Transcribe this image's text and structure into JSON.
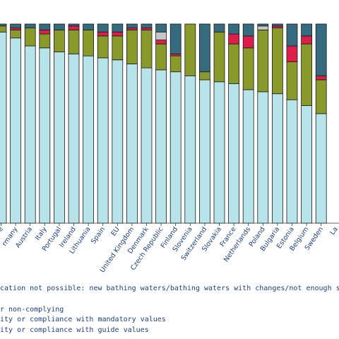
{
  "chart_data": {
    "type": "bar",
    "stacked": true,
    "orientation": "vertical",
    "grid": false,
    "ylim": [
      0,
      100
    ],
    "categories": [
      "e",
      "rmany",
      "Austria",
      "Italy",
      "Portugal",
      "Ireland",
      "Lithuania",
      "Spain",
      "EU",
      "United Kingdom",
      "Denmark",
      "Czech Republic",
      "Finland",
      "Slovenia",
      "Switzerland",
      "Slovakia",
      "France",
      "Netherlands",
      "Poland",
      "Bulgaria",
      "Estonia",
      "Belgium",
      "Sweden",
      "La"
    ],
    "series": [
      {
        "key": "guide",
        "color": "#b7e3ea",
        "values": [
          96,
          93,
          89,
          88,
          86,
          85,
          84,
          83,
          82,
          80,
          78,
          77,
          76,
          74,
          72,
          71,
          70,
          67,
          66,
          65,
          62,
          59,
          55,
          0
        ]
      },
      {
        "key": "mandatory",
        "color": "#8a9a2a",
        "values": [
          3,
          4,
          9,
          7,
          11,
          12,
          13,
          11,
          12,
          17,
          19,
          13,
          8,
          26,
          4,
          25,
          20,
          21,
          31,
          33,
          19,
          31,
          17,
          0
        ]
      },
      {
        "key": "noncomplying",
        "color": "#dd1d4a",
        "values": [
          0,
          1,
          0,
          2,
          0,
          2,
          0,
          2,
          2,
          1,
          1,
          2,
          1,
          0,
          0,
          0,
          5,
          6,
          0,
          1,
          8,
          4,
          2,
          0
        ]
      },
      {
        "key": "notpossible",
        "color": "#c6c6c6",
        "values": [
          0,
          0,
          0,
          0,
          0,
          0,
          0,
          0,
          0,
          0,
          0,
          4,
          0,
          0,
          0,
          0,
          0,
          0,
          2,
          0,
          0,
          0,
          0,
          0
        ]
      },
      {
        "key": "closed",
        "color": "#356b7f",
        "values": [
          1,
          2,
          2,
          3,
          3,
          1,
          3,
          4,
          4,
          2,
          2,
          4,
          15,
          0,
          24,
          4,
          5,
          6,
          1,
          1,
          11,
          6,
          26,
          0
        ]
      }
    ]
  },
  "legend": {
    "line1": "cation not possible: new bathing waters/bathing waters with changes/not enough samp",
    "line2": "r non-complying",
    "line3": "ity or compliance with mandatory values",
    "line4": "ity or compliance with guide values"
  }
}
